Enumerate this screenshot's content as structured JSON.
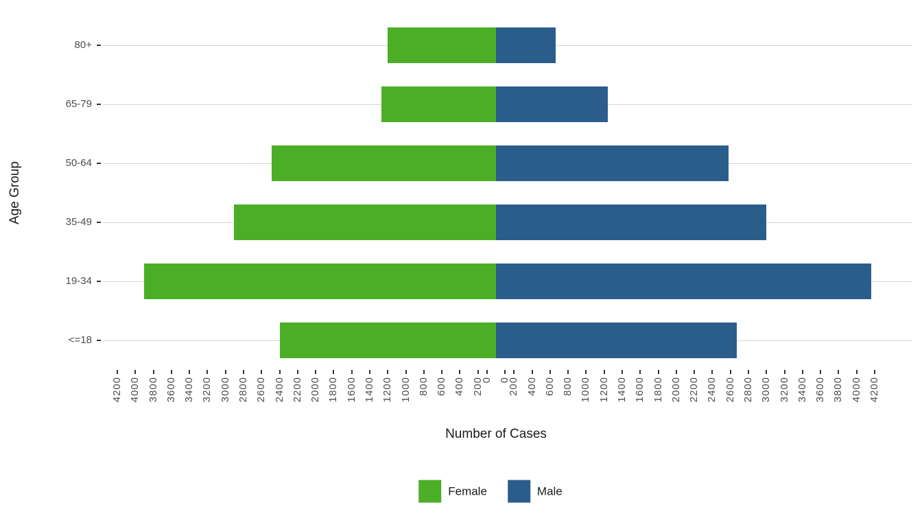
{
  "chart_data": {
    "type": "bar",
    "variant": "population_pyramid_diverging",
    "title": "",
    "xlabel": "Number of Cases",
    "ylabel": "Age Group",
    "categories": [
      "80+",
      "65-79",
      "50-64",
      "35-49",
      "19-34",
      "<=18"
    ],
    "series": [
      {
        "name": "Female",
        "side": "left",
        "color": "#4cae27",
        "values": [
          1200,
          1270,
          2490,
          2910,
          3900,
          2400
        ]
      },
      {
        "name": "Male",
        "side": "right",
        "color": "#2b5d8b",
        "values": [
          660,
          1240,
          2580,
          3000,
          4160,
          2670
        ]
      }
    ],
    "x_axis": {
      "max": 4200,
      "tick_step": 200,
      "tick_labels": [
        "4200",
        "4000",
        "3800",
        "3600",
        "3400",
        "3200",
        "3000",
        "2800",
        "2600",
        "2400",
        "2200",
        "2000",
        "1800",
        "1600",
        "1400",
        "1200",
        "1000",
        "800",
        "600",
        "400",
        "200",
        "0",
        "0",
        "200",
        "400",
        "600",
        "800",
        "1000",
        "1200",
        "1400",
        "1600",
        "1800",
        "2000",
        "2200",
        "2400",
        "2600",
        "2800",
        "3000",
        "3200",
        "3400",
        "3600",
        "3800",
        "4000",
        "4200"
      ]
    },
    "y_axis": {
      "tick_labels": [
        "80+",
        "65-79",
        "50-64",
        "35-49",
        "19-34",
        "<=18"
      ]
    },
    "legend": {
      "position": "bottom",
      "entries": [
        "Female",
        "Male"
      ]
    },
    "grid": {
      "horizontal": true,
      "vertical": false,
      "color": "#d4d4d4"
    },
    "background": "#ffffff"
  }
}
